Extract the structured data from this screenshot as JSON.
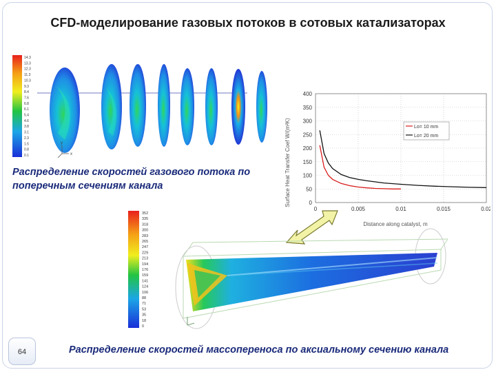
{
  "slide": {
    "title": "CFD-моделирование газовых потоков в сотовых катализаторах",
    "caption_top": "Распределение скоростей газового потока по поперечным сечениям канала",
    "caption_bottom": "Распределение скоростей массопереноса по аксиальному сечению канала",
    "page_number": "64"
  },
  "top_scale": {
    "labels": [
      "14.3",
      "13.3",
      "12.3",
      "11.3",
      "10.3",
      "9.3",
      "8.4",
      "7.6",
      "6.8",
      "6.1",
      "5.4",
      "4.6",
      "3.8",
      "3.1",
      "2.3",
      "1.5",
      "0.8",
      "0.1"
    ]
  },
  "bottom_scale": {
    "labels": [
      "352",
      "335",
      "318",
      "300",
      "283",
      "265",
      "247",
      "229",
      "213",
      "194",
      "176",
      "159",
      "141",
      "124",
      "106",
      "88",
      "71",
      "53",
      "35",
      "18",
      "0"
    ]
  },
  "axes_widget": {
    "x": "x",
    "y": "y",
    "z": "z"
  },
  "chart_data": {
    "type": "line",
    "title": "",
    "xlabel": "Distance along catalyst, m",
    "ylabel": "Surface Heat Transfer Coef W/(m²K)",
    "xlim": [
      0,
      0.02
    ],
    "ylim": [
      0,
      400
    ],
    "x_tick_labels": [
      "0",
      "0.005",
      "0.01",
      "0.015",
      "0.02"
    ],
    "y_tick_labels": [
      "400",
      "350",
      "300",
      "250",
      "200",
      "150",
      "100",
      "50",
      "0"
    ],
    "legend_position": "top-right",
    "grid": true,
    "series": [
      {
        "name": "Lo= 10 mm",
        "color": "#d81b1b",
        "x": [
          0.0005,
          0.001,
          0.0015,
          0.002,
          0.003,
          0.004,
          0.005,
          0.006,
          0.007,
          0.008,
          0.009,
          0.01
        ],
        "y": [
          210,
          130,
          100,
          85,
          70,
          62,
          57,
          54,
          52,
          51,
          50,
          50
        ]
      },
      {
        "name": "Lo= 20 mm",
        "color": "#111111",
        "x": [
          0.0005,
          0.001,
          0.0015,
          0.002,
          0.003,
          0.004,
          0.005,
          0.006,
          0.008,
          0.01,
          0.012,
          0.014,
          0.016,
          0.018,
          0.02
        ],
        "y": [
          265,
          180,
          145,
          125,
          103,
          92,
          85,
          80,
          72,
          67,
          63,
          60,
          58,
          56,
          55
        ]
      }
    ]
  }
}
